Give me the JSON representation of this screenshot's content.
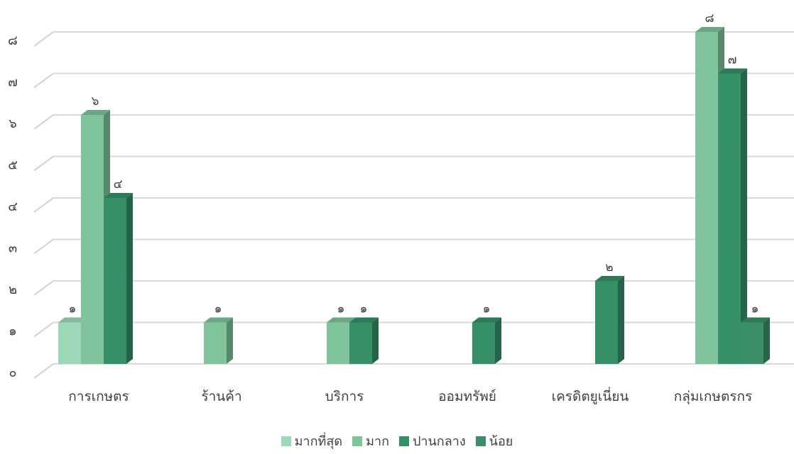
{
  "chart_data": {
    "type": "bar",
    "categories": [
      "การเกษตร",
      "ร้านค้า",
      "บริการ",
      "ออมทรัพย์",
      "เครดิตยูเนี่ยน",
      "กลุ่มเกษตรกร"
    ],
    "series": [
      {
        "name": "มากที่สุด",
        "color": "#9dd8b8",
        "values": [
          1,
          null,
          null,
          null,
          null,
          null
        ]
      },
      {
        "name": "มาก",
        "color": "#7fc49c",
        "values": [
          6,
          1,
          1,
          null,
          null,
          8
        ]
      },
      {
        "name": "ปานกลาง",
        "color": "#358f67",
        "values": [
          4,
          null,
          1,
          1,
          2,
          7
        ]
      },
      {
        "name": "น้อย",
        "color": "#3a8f68",
        "values": [
          null,
          null,
          null,
          null,
          null,
          1
        ]
      }
    ],
    "data_labels": [
      [
        "๑",
        null,
        null,
        null,
        null,
        null
      ],
      [
        "๖",
        "๑",
        "๑",
        null,
        null,
        "๘"
      ],
      [
        "๔",
        null,
        "๑",
        "๑",
        "๒",
        "๗"
      ],
      [
        null,
        null,
        null,
        null,
        null,
        "๑"
      ]
    ],
    "ylim": [
      0,
      8
    ],
    "yticks": [
      0,
      1,
      2,
      3,
      4,
      5,
      6,
      7,
      8
    ],
    "ytick_labels": [
      "๐",
      "๑",
      "๒",
      "๓",
      "๔",
      "๕",
      "๖",
      "๗",
      "๘"
    ],
    "grid": true,
    "legend_position": "bottom",
    "title": "",
    "xlabel": "",
    "ylabel": ""
  }
}
